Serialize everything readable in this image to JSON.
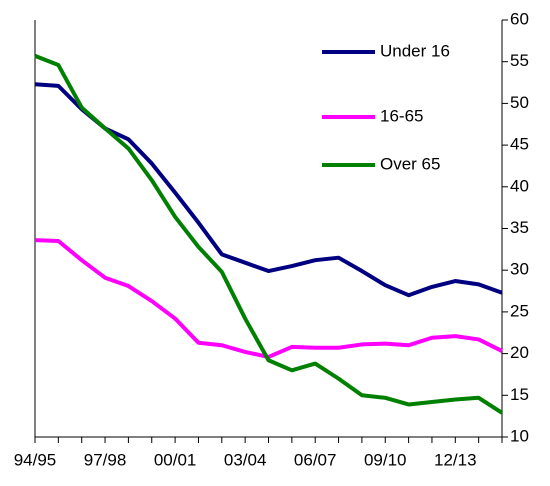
{
  "chart_data": {
    "type": "line",
    "categories": [
      "94/95",
      null,
      null,
      "97/98",
      null,
      null,
      "00/01",
      null,
      null,
      "03/04",
      null,
      null,
      "06/07",
      null,
      null,
      "09/10",
      null,
      null,
      "12/13",
      null,
      null
    ],
    "series": [
      {
        "name": "Under 16",
        "color": "#000080",
        "values": [
          52.3,
          52.1,
          49.3,
          47,
          45.7,
          42.8,
          39.3,
          35.7,
          31.9,
          30.9,
          29.9,
          30.5,
          31.2,
          31.5,
          29.9,
          28.2,
          27,
          28,
          28.7,
          28.3,
          27.3
        ]
      },
      {
        "name": "16-65",
        "color": "#ff00ff",
        "values": [
          33.6,
          33.5,
          31.2,
          29.1,
          28.1,
          26.3,
          24.2,
          21.3,
          21,
          20.2,
          19.6,
          20.8,
          20.7,
          20.7,
          21.1,
          21.2,
          21,
          21.9,
          22.1,
          21.7,
          20.3
        ]
      },
      {
        "name": "Over 65",
        "color": "#008000",
        "values": [
          55.7,
          54.6,
          49.5,
          47,
          44.6,
          40.8,
          36.4,
          32.8,
          29.8,
          24.2,
          19.2,
          18,
          18.8,
          17,
          15,
          14.7,
          13.9,
          14.2,
          14.5,
          14.7,
          12.9
        ]
      }
    ],
    "ylim": [
      10,
      60
    ],
    "yticks": [
      10,
      15,
      20,
      25,
      30,
      35,
      40,
      45,
      50,
      55,
      60
    ],
    "grid": false
  }
}
